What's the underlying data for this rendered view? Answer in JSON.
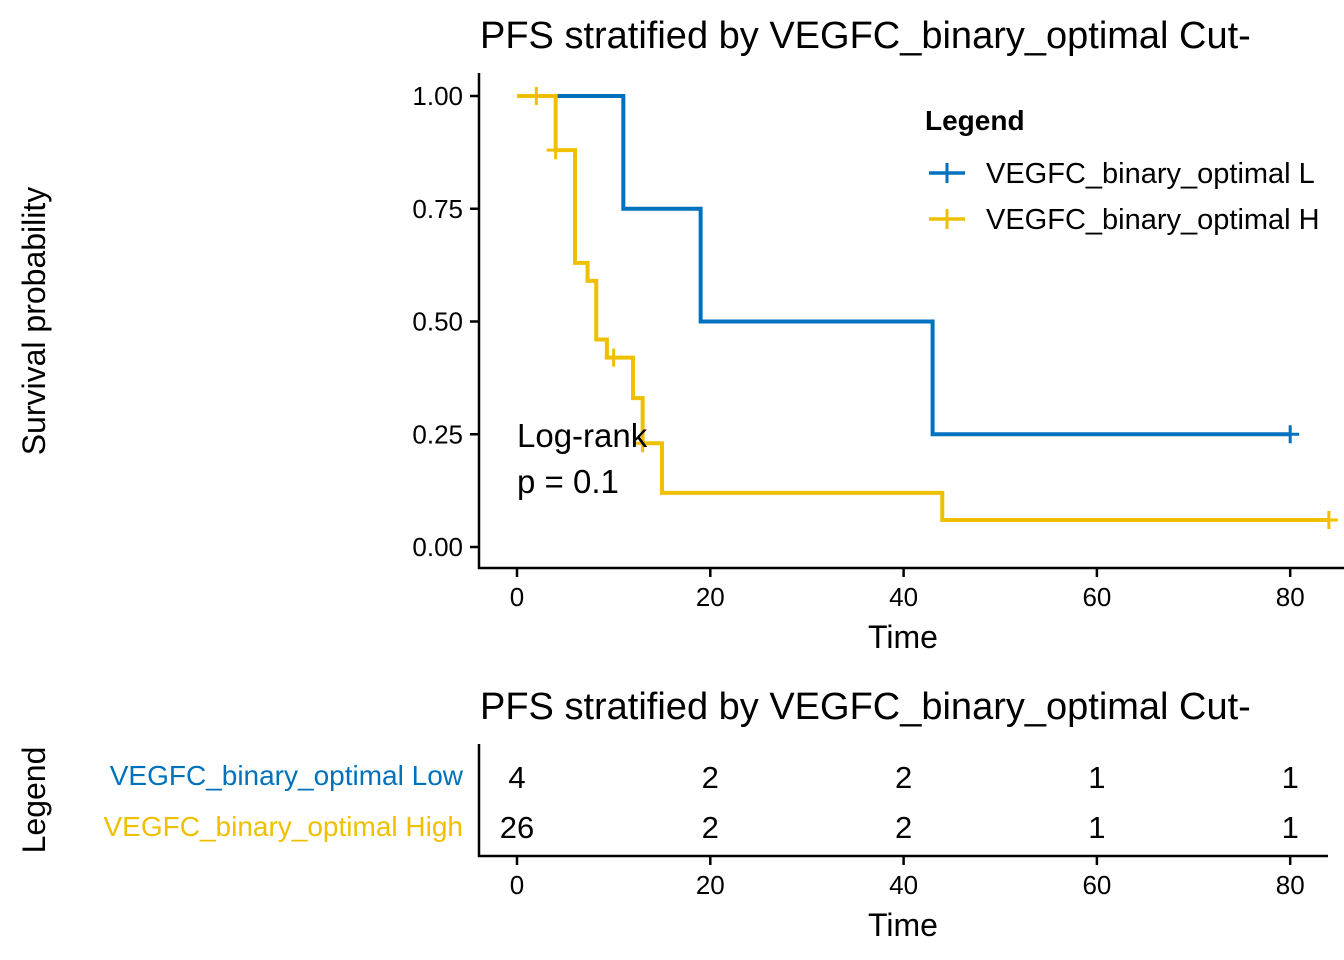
{
  "chart_data": [
    {
      "type": "line",
      "subtype": "kaplan-meier",
      "title": "PFS stratified by VEGFC_binary_optimal Cut-",
      "xlabel": "Time",
      "ylabel": "Survival probability",
      "xlim": [
        -4,
        84
      ],
      "ylim": [
        -0.05,
        1.05
      ],
      "xticks": [
        "0",
        "20",
        "40",
        "60",
        "80"
      ],
      "yticks": [
        "0.00",
        "0.25",
        "0.50",
        "0.75",
        "1.00"
      ],
      "grid": false,
      "legend": {
        "title": "Legend",
        "placement": "top-right",
        "entries": [
          "VEGFC_binary_optimal L",
          "VEGFC_binary_optimal H"
        ]
      },
      "annotation": [
        "Log-rank",
        "p = 0.1"
      ],
      "series": [
        {
          "name": "VEGFC_binary_optimal Low",
          "color": "#0072BD",
          "steps": [
            [
              0,
              1.0
            ],
            [
              11,
              0.75
            ],
            [
              19,
              0.5
            ],
            [
              43,
              0.25
            ],
            [
              80,
              0.25
            ]
          ],
          "censored": [
            [
              80,
              0.25
            ]
          ]
        },
        {
          "name": "VEGFC_binary_optimal High",
          "color": "#EFC000",
          "steps": [
            [
              0,
              1.0
            ],
            [
              4,
              0.88
            ],
            [
              6,
              0.8
            ],
            [
              6,
              0.8
            ],
            [
              6,
              0.63
            ],
            [
              7.3,
              0.59
            ],
            [
              8.2,
              0.46
            ],
            [
              9.3,
              0.42
            ],
            [
              12,
              0.33
            ],
            [
              13,
              0.23
            ],
            [
              15,
              0.12
            ],
            [
              44,
              0.06
            ],
            [
              84,
              0.06
            ]
          ],
          "censored": [
            [
              2,
              1.0
            ],
            [
              4,
              0.88
            ],
            [
              10,
              0.42
            ],
            [
              13,
              0.23
            ],
            [
              84,
              0.06
            ]
          ]
        }
      ]
    },
    {
      "type": "table",
      "title": "PFS stratified by VEGFC_binary_optimal Cut-",
      "xlabel": "Time",
      "ylabel": "Legend",
      "xticks": [
        "0",
        "20",
        "40",
        "60",
        "80"
      ],
      "times": [
        0,
        20,
        40,
        60,
        80
      ],
      "rows": [
        {
          "label": "VEGFC_binary_optimal Low",
          "color": "#0072BD",
          "values": [
            "4",
            "2",
            "2",
            "1",
            "1"
          ]
        },
        {
          "label": "VEGFC_binary_optimal High",
          "color": "#EFC000",
          "values": [
            "26",
            "2",
            "2",
            "1",
            "1"
          ]
        }
      ]
    }
  ]
}
